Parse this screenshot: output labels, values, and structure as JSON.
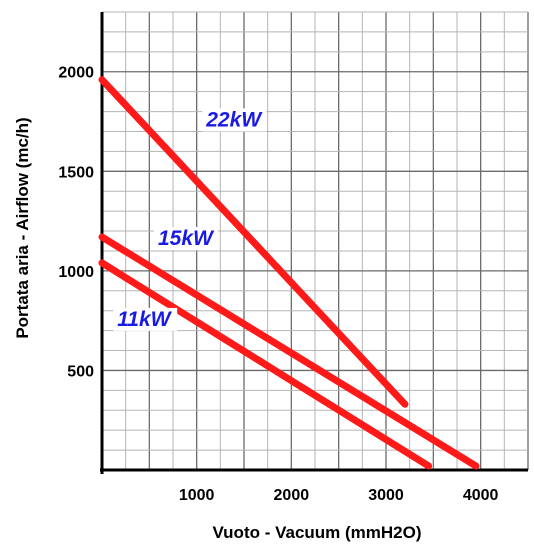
{
  "chart_data": {
    "type": "line",
    "title": "",
    "xlabel": "Vuoto - Vacuum (mmH2O)",
    "ylabel": "Portata aria - Airflow (mc/h)",
    "xlim": [
      0,
      4500
    ],
    "ylim": [
      0,
      2300
    ],
    "x_ticks": [
      "1000",
      "2000",
      "3000",
      "4000"
    ],
    "y_ticks": [
      "500",
      "1000",
      "1500",
      "2000"
    ],
    "grid": true,
    "line_color": "#ff1a1a",
    "label_color": "#1a1ae6",
    "series": [
      {
        "name": "22kW",
        "x": [
          0,
          3200
        ],
        "y": [
          1960,
          330
        ]
      },
      {
        "name": "15kW",
        "x": [
          0,
          3950
        ],
        "y": [
          1170,
          20
        ]
      },
      {
        "name": "11kW",
        "x": [
          0,
          3450
        ],
        "y": [
          1040,
          20
        ]
      }
    ]
  }
}
